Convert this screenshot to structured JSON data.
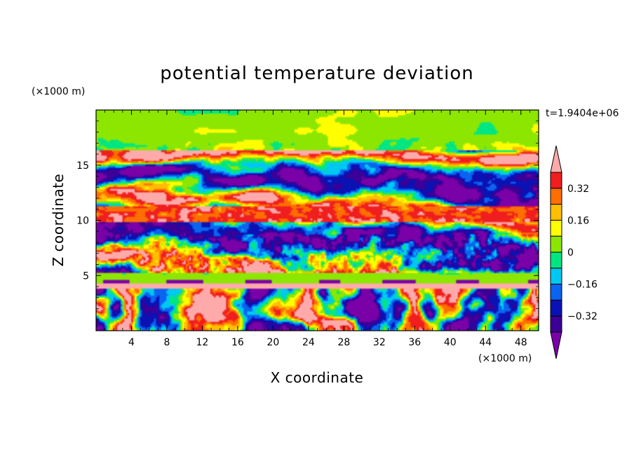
{
  "chart_data": {
    "type": "heatmap",
    "title": "potential temperature deviation",
    "xlabel": "X coordinate",
    "ylabel": "Z coordinate",
    "x_unit_label": "(×1000 m)",
    "y_unit_label": "(×1000 m)",
    "time_label": "t=1.9404e+06",
    "xlim": [
      0,
      50
    ],
    "ylim": [
      0,
      20
    ],
    "x_ticks": [
      4,
      8,
      12,
      16,
      20,
      24,
      28,
      32,
      36,
      40,
      44,
      48
    ],
    "x_tick_labels": [
      "4",
      "8",
      "12",
      "16",
      "20",
      "24",
      "28",
      "32",
      "36",
      "40",
      "44",
      "48"
    ],
    "y_ticks": [
      5,
      10,
      15
    ],
    "y_tick_labels": [
      "5",
      "10",
      "15"
    ],
    "colorbar": {
      "levels": [
        -0.4,
        -0.32,
        -0.24,
        -0.16,
        -0.08,
        0,
        0.08,
        0.16,
        0.24,
        0.32,
        0.4
      ],
      "colors": [
        "#7a00a8",
        "#3c0096",
        "#0a12b4",
        "#0a64f0",
        "#00c8f0",
        "#00e682",
        "#8ce600",
        "#ffff00",
        "#ffbe00",
        "#ff6e00",
        "#f01e1e",
        "#ffaaaa"
      ],
      "labeled_levels": [
        0.32,
        0.16,
        0,
        -0.16,
        -0.32
      ],
      "labels": [
        "0.32",
        "0.16",
        "0",
        "−0.16",
        "−0.32"
      ],
      "extend": "both"
    },
    "field_description_layers": {
      "upper_smooth_region_z": [
        16,
        20
      ],
      "banded_layer_region_z": [
        5,
        16
      ],
      "stable_interface_z": [
        3.8,
        5.2
      ],
      "lower_turbulent_region_z": [
        0,
        3.8
      ]
    }
  }
}
